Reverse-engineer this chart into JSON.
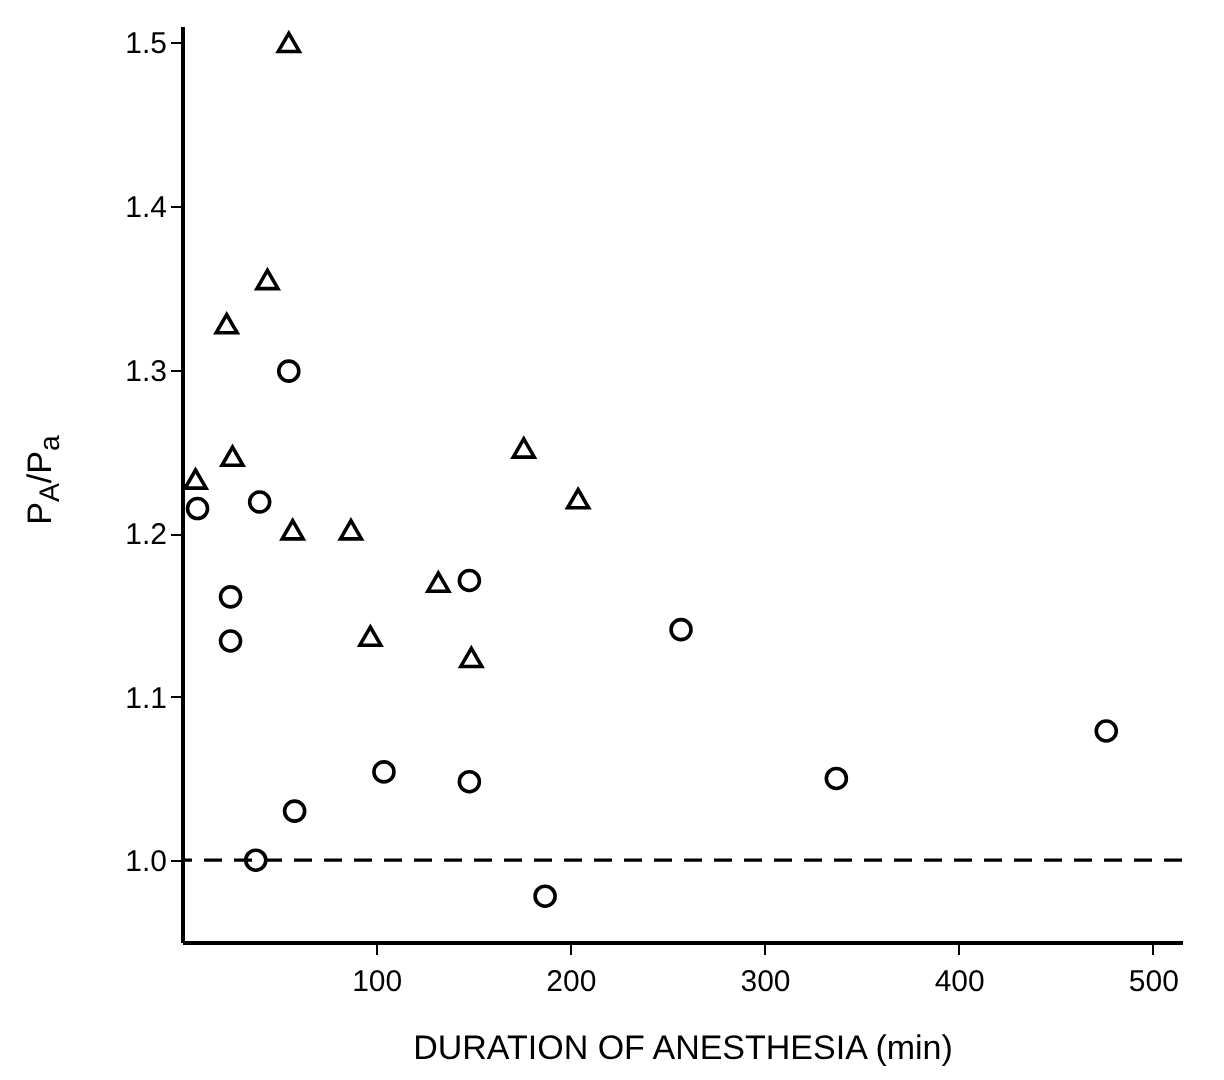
{
  "chart_data": {
    "type": "scatter",
    "xlabel": "DURATION OF ANESTHESIA (min)",
    "ylabel": "P$_{A}$/P$_{a}$",
    "xlim": [
      0,
      515
    ],
    "xticks": [
      100,
      200,
      300,
      400,
      500
    ],
    "ylim": [
      0.95,
      1.51
    ],
    "yticks": [
      {
        "value": 1,
        "label": "1.0"
      },
      1.1,
      1.2,
      1.3,
      1.4,
      1.5
    ],
    "grid": false,
    "series": [
      {
        "color": "#000000",
        "marker": "triangle",
        "x": [
          55,
          44,
          23,
          26,
          7,
          176,
          204,
          57,
          87,
          132,
          97,
          149
        ],
        "values": [
          1.5,
          1.355,
          1.328,
          1.247,
          1.233,
          1.252,
          1.221,
          1.202,
          1.202,
          1.17,
          1.137,
          1.124
        ]
      },
      {
        "color": "#000000",
        "marker": "circle",
        "x": [
          8,
          55,
          40,
          25,
          25,
          148,
          104,
          148,
          58,
          38,
          187,
          257,
          337,
          476
        ],
        "values": [
          1.215,
          1.299,
          1.219,
          1.161,
          1.134,
          1.171,
          1.054,
          1.048,
          1.03,
          1.0,
          0.978,
          1.141,
          1.05,
          1.079
        ]
      }
    ],
    "ref_lines": [
      {
        "axis": "y",
        "value": 1.0,
        "line_style": "dashed",
        "color": "#000000"
      }
    ]
  }
}
